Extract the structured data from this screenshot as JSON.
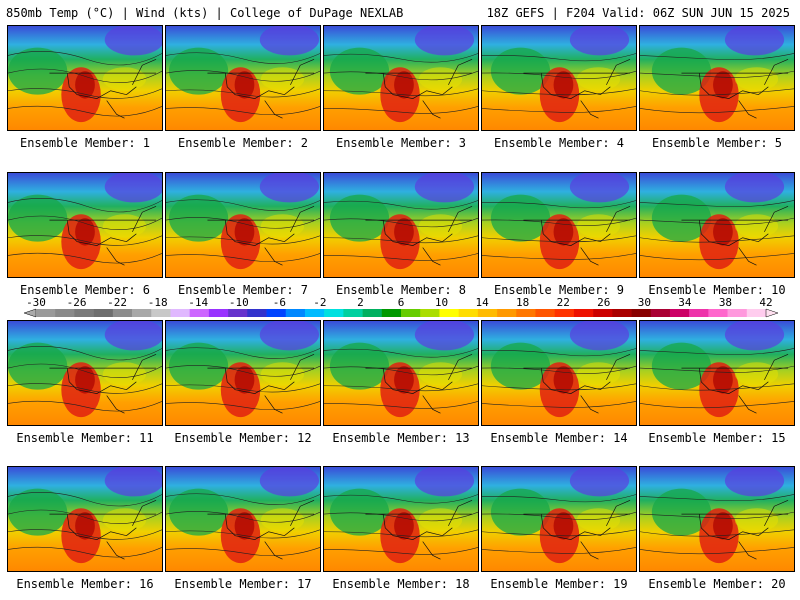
{
  "header": {
    "left": "850mb Temp (°C) | Wind (kts) | College of DuPage NEXLAB",
    "right": "18Z GEFS | F204 Valid: 06Z SUN JUN 15 2025"
  },
  "panels": [
    {
      "label": "Ensemble Member: 1"
    },
    {
      "label": "Ensemble Member: 2"
    },
    {
      "label": "Ensemble Member: 3"
    },
    {
      "label": "Ensemble Member: 4"
    },
    {
      "label": "Ensemble Member: 5"
    },
    {
      "label": "Ensemble Member: 6"
    },
    {
      "label": "Ensemble Member: 7"
    },
    {
      "label": "Ensemble Member: 8"
    },
    {
      "label": "Ensemble Member: 9"
    },
    {
      "label": "Ensemble Member: 10"
    },
    {
      "label": "Ensemble Member: 11"
    },
    {
      "label": "Ensemble Member: 12"
    },
    {
      "label": "Ensemble Member: 13"
    },
    {
      "label": "Ensemble Member: 14"
    },
    {
      "label": "Ensemble Member: 15"
    },
    {
      "label": "Ensemble Member: 16"
    },
    {
      "label": "Ensemble Member: 17"
    },
    {
      "label": "Ensemble Member: 18"
    },
    {
      "label": "Ensemble Member: 19"
    },
    {
      "label": "Ensemble Member: 20"
    }
  ],
  "colorbar": {
    "ticks": [
      "-30",
      "-26",
      "-22",
      "-18",
      "-14",
      "-10",
      "-6",
      "-2",
      "2",
      "6",
      "10",
      "14",
      "18",
      "22",
      "26",
      "30",
      "34",
      "38",
      "42"
    ],
    "colors": [
      "#9a9a9a",
      "#8a8a8a",
      "#7a7a7a",
      "#6e6e6e",
      "#8c8c8c",
      "#a8a8a8",
      "#c8c8c8",
      "#e0b8ff",
      "#cc66ff",
      "#9933ff",
      "#6633cc",
      "#3333cc",
      "#0044ff",
      "#0088ff",
      "#00bbff",
      "#00e0e0",
      "#00d0a0",
      "#00b060",
      "#009900",
      "#66cc00",
      "#aadd00",
      "#ffff00",
      "#ffdd00",
      "#ffbb00",
      "#ff9900",
      "#ff7700",
      "#ff5500",
      "#ff3300",
      "#ee1100",
      "#cc0000",
      "#aa0000",
      "#880000",
      "#aa0033",
      "#cc0066",
      "#ee33aa",
      "#ff66cc",
      "#ff99dd",
      "#ffccee"
    ]
  }
}
